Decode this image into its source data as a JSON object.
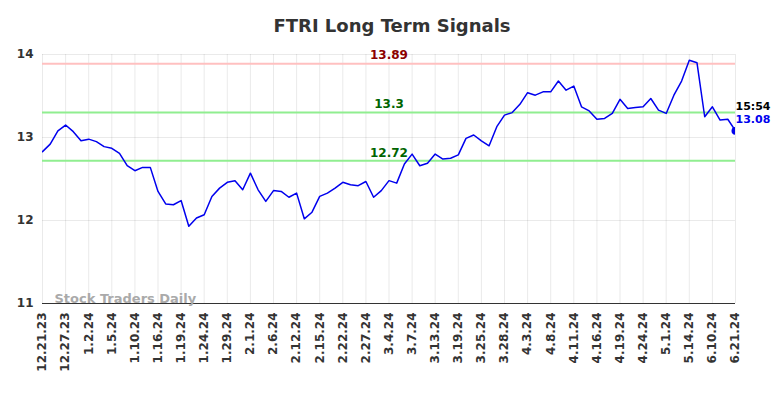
{
  "chart_data": {
    "type": "line",
    "title": "FTRI Long Term Signals",
    "categories": [
      "12.21.23",
      null,
      null,
      "12.27.23",
      null,
      null,
      "1.2.24",
      null,
      null,
      "1.5.24",
      null,
      null,
      "1.10.24",
      null,
      null,
      "1.16.24",
      null,
      null,
      "1.19.24",
      null,
      null,
      "1.24.24",
      null,
      null,
      "1.29.24",
      null,
      null,
      "2.1.24",
      null,
      null,
      "2.6.24",
      null,
      null,
      "2.12.24",
      null,
      null,
      "2.15.24",
      null,
      null,
      "2.22.24",
      null,
      null,
      "2.27.24",
      null,
      null,
      "3.4.24",
      null,
      null,
      "3.7.24",
      null,
      null,
      "3.13.24",
      null,
      null,
      "3.19.24",
      null,
      null,
      "3.25.24",
      null,
      null,
      "3.28.24",
      null,
      null,
      "4.3.24",
      null,
      null,
      "4.8.24",
      null,
      null,
      "4.11.24",
      null,
      null,
      "4.16.24",
      null,
      null,
      "4.19.24",
      null,
      null,
      "4.24.24",
      null,
      null,
      "5.1.24",
      null,
      null,
      "5.14.24",
      null,
      null,
      "6.10.24",
      null,
      null,
      "6.21.24"
    ],
    "values": [
      12.83,
      12.92,
      13.08,
      13.15,
      13.07,
      12.96,
      12.98,
      12.95,
      12.89,
      12.87,
      12.81,
      12.66,
      12.6,
      12.64,
      12.64,
      12.35,
      12.2,
      12.19,
      12.24,
      11.93,
      12.03,
      12.07,
      12.29,
      12.39,
      12.46,
      12.48,
      12.37,
      12.57,
      12.37,
      12.23,
      12.36,
      12.35,
      12.28,
      12.33,
      12.02,
      12.1,
      12.29,
      12.33,
      12.39,
      12.46,
      12.43,
      12.42,
      12.47,
      12.28,
      12.36,
      12.48,
      12.45,
      12.68,
      12.8,
      12.66,
      12.69,
      12.8,
      12.74,
      12.75,
      12.79,
      12.99,
      13.03,
      12.96,
      12.9,
      13.13,
      13.27,
      13.3,
      13.4,
      13.54,
      13.51,
      13.55,
      13.55,
      13.68,
      13.57,
      13.62,
      13.37,
      13.32,
      13.22,
      13.23,
      13.29,
      13.46,
      13.35,
      13.36,
      13.37,
      13.47,
      13.33,
      13.29,
      13.51,
      13.68,
      13.93,
      13.9,
      13.25,
      13.37,
      13.21,
      13.22,
      13.08
    ],
    "color": "#0000ee",
    "ylim": [
      11,
      14
    ],
    "yticks": [
      11,
      12,
      13,
      14
    ],
    "grid": true,
    "reference_lines": [
      {
        "value": 13.89,
        "color": "#ffc0c0",
        "label_color": "#8b0000"
      },
      {
        "value": 13.3,
        "color": "#90ee90",
        "label_color": "#006400"
      },
      {
        "value": 12.72,
        "color": "#90ee90",
        "label_color": "#006400"
      }
    ],
    "last_point_time": "15:54",
    "watermark": "Stock Traders Daily"
  }
}
